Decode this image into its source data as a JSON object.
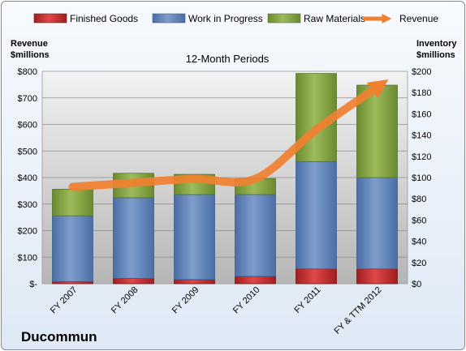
{
  "chart_data": {
    "type": "bar",
    "stacked": true,
    "title": "12-Month Periods",
    "company": "Ducommun",
    "left_axis_label": [
      "Revenue",
      "$millions"
    ],
    "right_axis_label": [
      "Inventory",
      "$millions"
    ],
    "categories": [
      "FY 2007",
      "FY 2008",
      "FY 2009",
      "FY 2010",
      "FY 2011",
      "FY & TTM 2012"
    ],
    "series": [
      {
        "name": "Finished Goods",
        "axis": "right",
        "color": "#c0282a",
        "values": [
          2,
          5,
          4,
          7,
          14,
          14
        ]
      },
      {
        "name": "Work in Progress",
        "axis": "right",
        "color": "#5b7fb5",
        "values": [
          62,
          76,
          80,
          77,
          101,
          86
        ]
      },
      {
        "name": "Raw Materials",
        "axis": "right",
        "color": "#7c9b3e",
        "values": [
          25,
          23,
          19,
          15,
          83,
          87
        ]
      },
      {
        "name": "Revenue",
        "axis": "left",
        "type": "line",
        "color": "#f08030",
        "values": [
          365,
          380,
          395,
          395,
          580,
          740
        ]
      }
    ],
    "left_axis": {
      "min": 0,
      "max": 800,
      "step": 100,
      "tick_labels": [
        "$-",
        "$100",
        "$200",
        "$300",
        "$400",
        "$500",
        "$600",
        "$700",
        "$800"
      ]
    },
    "right_axis": {
      "min": 0,
      "max": 200,
      "step": 20,
      "tick_labels": [
        "$0",
        "$20",
        "$40",
        "$60",
        "$80",
        "$100",
        "$120",
        "$140",
        "$160",
        "$180",
        "$200"
      ]
    },
    "grid": true,
    "legend_position": "top"
  }
}
